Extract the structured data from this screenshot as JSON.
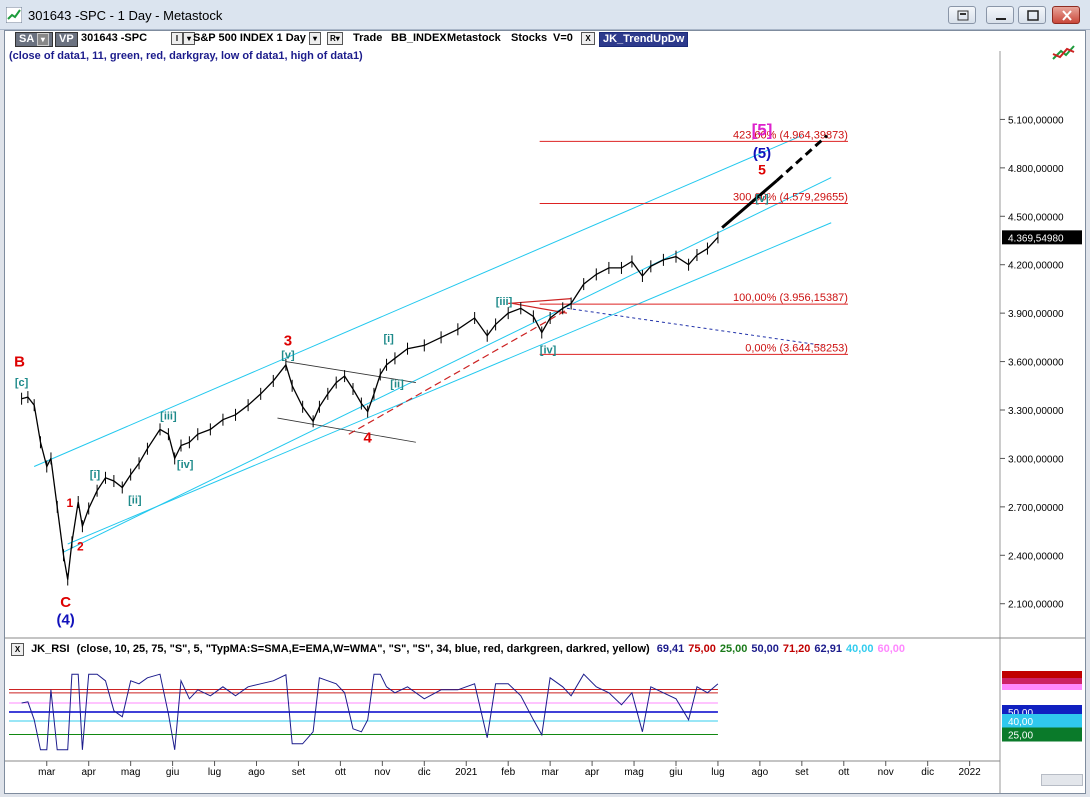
{
  "window": {
    "title": "301643 -SPC - 1 Day - Metastock"
  },
  "toolbar": {
    "sa": "SA",
    "vp": "VP",
    "symbol": "301643 -SPC",
    "i_label": "I",
    "instrument": "S&P 500 INDEX  1 Day",
    "r_label": "R",
    "trade": "Trade",
    "feed": "BB_INDEX",
    "source": "Metastock",
    "asset": "Stocks",
    "v_value": "V=0",
    "x_label": "X",
    "indicator": "JK_TrendUpDw"
  },
  "params_text": "(close of data1,  11,  green,  red,  darkgray,  low of data1,  high of data1)",
  "rsi": {
    "x_label": "X",
    "name": "JK_RSI",
    "params": "(close,  10,  25,  75,  \"S\",  5,  \"TypMA:S=SMA,E=EMA,W=WMA\",  \"S\",  \"S\",  34,  blue,  red,  darkgreen,  darkred,  yellow)",
    "values": [
      {
        "text": "69,41",
        "color": "#1c1c8c"
      },
      {
        "text": "75,00",
        "color": "#c00000"
      },
      {
        "text": "25,00",
        "color": "#1a7a1a"
      },
      {
        "text": "50,00",
        "color": "#1c1c8c"
      },
      {
        "text": "71,20",
        "color": "#c00000"
      },
      {
        "text": "62,91",
        "color": "#1c1c8c"
      },
      {
        "text": "40,00",
        "color": "#33ccee"
      },
      {
        "text": "60,00",
        "color": "#ff88ff"
      }
    ],
    "axis_labels": [
      {
        "text": "50,00",
        "bg": "#1020c0",
        "fg": "#ffffff"
      },
      {
        "text": "40,00",
        "bg": "#30c8ee",
        "fg": "#ffffff"
      },
      {
        "text": "25,00",
        "bg": "#0a7a2a",
        "fg": "#ffffff"
      }
    ],
    "ylim": [
      0,
      100
    ],
    "levels": [
      {
        "value": 75,
        "color": "#cc2222"
      },
      {
        "value": 71.2,
        "color": "#cc2222"
      },
      {
        "value": 60,
        "color": "#ff88ff"
      },
      {
        "value": 50,
        "color": "#0000cc"
      },
      {
        "value": 40,
        "color": "#33ccee"
      },
      {
        "value": 25,
        "color": "#118811"
      }
    ]
  },
  "chart_data": {
    "type": "line",
    "ylim": [
      1900000,
      5400000
    ],
    "yticks": [
      {
        "value": 2100000,
        "label": "2.100,00000"
      },
      {
        "value": 2400000,
        "label": "2.400,00000"
      },
      {
        "value": 2700000,
        "label": "2.700,00000"
      },
      {
        "value": 3000000,
        "label": "3.000,00000"
      },
      {
        "value": 3300000,
        "label": "3.300,00000"
      },
      {
        "value": 3600000,
        "label": "3.600,00000"
      },
      {
        "value": 3900000,
        "label": "3.900,00000"
      },
      {
        "value": 4200000,
        "label": "4.200,00000"
      },
      {
        "value": 4500000,
        "label": "4.500,00000"
      },
      {
        "value": 4800000,
        "label": "4.800,00000"
      },
      {
        "value": 5100000,
        "label": "5.100,00000"
      }
    ],
    "last_price": {
      "value": 4369549.8,
      "label": "4.369,54980"
    },
    "xmonths": [
      {
        "t": 1.5,
        "label": "mar"
      },
      {
        "t": 2.5,
        "label": "apr"
      },
      {
        "t": 3.5,
        "label": "mag"
      },
      {
        "t": 4.5,
        "label": "giu"
      },
      {
        "t": 5.5,
        "label": "lug"
      },
      {
        "t": 6.5,
        "label": "ago"
      },
      {
        "t": 7.5,
        "label": "set"
      },
      {
        "t": 8.5,
        "label": "ott"
      },
      {
        "t": 9.5,
        "label": "nov"
      },
      {
        "t": 10.5,
        "label": "dic"
      },
      {
        "t": 11.5,
        "label": "2021"
      },
      {
        "t": 12.5,
        "label": "feb"
      },
      {
        "t": 13.5,
        "label": "mar"
      },
      {
        "t": 14.5,
        "label": "apr"
      },
      {
        "t": 15.5,
        "label": "mag"
      },
      {
        "t": 16.5,
        "label": "giu"
      },
      {
        "t": 17.5,
        "label": "lug"
      },
      {
        "t": 18.5,
        "label": "ago"
      },
      {
        "t": 19.5,
        "label": "set"
      },
      {
        "t": 20.5,
        "label": "ott"
      },
      {
        "t": 21.5,
        "label": "nov"
      },
      {
        "t": 22.5,
        "label": "dic"
      },
      {
        "t": 23.5,
        "label": "2022"
      }
    ],
    "price_path": [
      [
        0.9,
        3370000
      ],
      [
        1.05,
        3380000
      ],
      [
        1.2,
        3330000
      ],
      [
        1.35,
        3100000
      ],
      [
        1.5,
        2950000
      ],
      [
        1.6,
        3000000
      ],
      [
        1.75,
        2700000
      ],
      [
        1.9,
        2400000
      ],
      [
        2.0,
        2250000
      ],
      [
        2.1,
        2480000
      ],
      [
        2.25,
        2730000
      ],
      [
        2.35,
        2580000
      ],
      [
        2.5,
        2690000
      ],
      [
        2.7,
        2800000
      ],
      [
        2.9,
        2880000
      ],
      [
        3.1,
        2860000
      ],
      [
        3.3,
        2820000
      ],
      [
        3.5,
        2900000
      ],
      [
        3.7,
        2970000
      ],
      [
        3.9,
        3060000
      ],
      [
        4.2,
        3180000
      ],
      [
        4.4,
        3150000
      ],
      [
        4.55,
        3000000
      ],
      [
        4.7,
        3080000
      ],
      [
        4.9,
        3100000
      ],
      [
        5.1,
        3150000
      ],
      [
        5.4,
        3180000
      ],
      [
        5.7,
        3240000
      ],
      [
        6.0,
        3270000
      ],
      [
        6.3,
        3330000
      ],
      [
        6.6,
        3400000
      ],
      [
        6.9,
        3480000
      ],
      [
        7.2,
        3580000
      ],
      [
        7.35,
        3450000
      ],
      [
        7.6,
        3320000
      ],
      [
        7.85,
        3230000
      ],
      [
        8.0,
        3320000
      ],
      [
        8.2,
        3400000
      ],
      [
        8.4,
        3470000
      ],
      [
        8.6,
        3510000
      ],
      [
        8.8,
        3430000
      ],
      [
        9.0,
        3340000
      ],
      [
        9.15,
        3290000
      ],
      [
        9.3,
        3400000
      ],
      [
        9.45,
        3520000
      ],
      [
        9.6,
        3580000
      ],
      [
        9.8,
        3620000
      ],
      [
        10.1,
        3680000
      ],
      [
        10.5,
        3700000
      ],
      [
        10.9,
        3750000
      ],
      [
        11.3,
        3800000
      ],
      [
        11.7,
        3870000
      ],
      [
        12.0,
        3760000
      ],
      [
        12.2,
        3830000
      ],
      [
        12.5,
        3900000
      ],
      [
        12.8,
        3930000
      ],
      [
        13.1,
        3880000
      ],
      [
        13.3,
        3780000
      ],
      [
        13.5,
        3870000
      ],
      [
        13.8,
        3930000
      ],
      [
        14.0,
        3960000
      ],
      [
        14.3,
        4080000
      ],
      [
        14.6,
        4140000
      ],
      [
        14.9,
        4180000
      ],
      [
        15.2,
        4180000
      ],
      [
        15.45,
        4220000
      ],
      [
        15.7,
        4130000
      ],
      [
        15.9,
        4190000
      ],
      [
        16.2,
        4230000
      ],
      [
        16.5,
        4250000
      ],
      [
        16.8,
        4200000
      ],
      [
        17.0,
        4260000
      ],
      [
        17.25,
        4300000
      ],
      [
        17.5,
        4369550
      ]
    ],
    "fib_levels": [
      {
        "label": "423,60% (4.964,39873)",
        "value": 4964398.73
      },
      {
        "label": "300,00% (4.579,29655)",
        "value": 4579296.55
      },
      {
        "label": "100,00% (3.956,15387)",
        "value": 3956153.87
      },
      {
        "label": "0,00% (3.644,58253)",
        "value": 3644582.53
      }
    ],
    "channels": [
      {
        "from": [
          1.2,
          2950000
        ],
        "to": [
          19.5,
          5000000
        ]
      },
      {
        "from": [
          1.9,
          2420000
        ],
        "to": [
          20.2,
          4740000
        ]
      },
      {
        "from": [
          2.0,
          2470000
        ],
        "to": [
          20.2,
          4460000
        ]
      }
    ],
    "projection": {
      "from": [
        17.6,
        4430000
      ],
      "to": [
        18.9,
        4720000
      ],
      "to2": [
        20.1,
        5000000
      ]
    },
    "wave_labels": [
      {
        "text": "B",
        "t": 0.85,
        "v": 3570000,
        "color": "#dd0000",
        "size": 15
      },
      {
        "text": "[c]",
        "t": 0.9,
        "v": 3450000,
        "color": "#1e8a8a",
        "size": 11
      },
      {
        "text": "C",
        "t": 1.95,
        "v": 2080000,
        "color": "#dd0000",
        "size": 15
      },
      {
        "text": "(4)",
        "t": 1.95,
        "v": 1970000,
        "color": "#1111bb",
        "size": 15
      },
      {
        "text": "1",
        "t": 2.05,
        "v": 2700000,
        "color": "#dd0000",
        "size": 12
      },
      {
        "text": "2",
        "t": 2.3,
        "v": 2430000,
        "color": "#dd0000",
        "size": 12
      },
      {
        "text": "[i]",
        "t": 2.65,
        "v": 2880000,
        "color": "#1e8a8a",
        "size": 11
      },
      {
        "text": "[ii]",
        "t": 3.6,
        "v": 2720000,
        "color": "#1e8a8a",
        "size": 11
      },
      {
        "text": "[iii]",
        "t": 4.4,
        "v": 3240000,
        "color": "#1e8a8a",
        "size": 11
      },
      {
        "text": "[iv]",
        "t": 4.8,
        "v": 2940000,
        "color": "#1e8a8a",
        "size": 11
      },
      {
        "text": "3",
        "t": 7.25,
        "v": 3700000,
        "color": "#dd0000",
        "size": 15
      },
      {
        "text": "[v]",
        "t": 7.25,
        "v": 3620000,
        "color": "#1e8a8a",
        "size": 11
      },
      {
        "text": "4",
        "t": 9.15,
        "v": 3100000,
        "color": "#dd0000",
        "size": 15
      },
      {
        "text": "[i]",
        "t": 9.65,
        "v": 3720000,
        "color": "#1e8a8a",
        "size": 11
      },
      {
        "text": "[ii]",
        "t": 9.85,
        "v": 3440000,
        "color": "#1e8a8a",
        "size": 11
      },
      {
        "text": "[iii]",
        "t": 12.4,
        "v": 3950000,
        "color": "#1e8a8a",
        "size": 11
      },
      {
        "text": "[iv]",
        "t": 13.45,
        "v": 3650000,
        "color": "#1e8a8a",
        "size": 11
      },
      {
        "text": "[v]",
        "t": 18.55,
        "v": 4590000,
        "color": "#1e8a8a",
        "size": 11
      },
      {
        "text": "5",
        "t": 18.55,
        "v": 4760000,
        "color": "#dd0000",
        "size": 14
      },
      {
        "text": "(5)",
        "t": 18.55,
        "v": 4860000,
        "color": "#1111bb",
        "size": 15
      },
      {
        "text": "[5]",
        "t": 18.55,
        "v": 5000000,
        "color": "#dd22cc",
        "size": 17
      }
    ]
  }
}
